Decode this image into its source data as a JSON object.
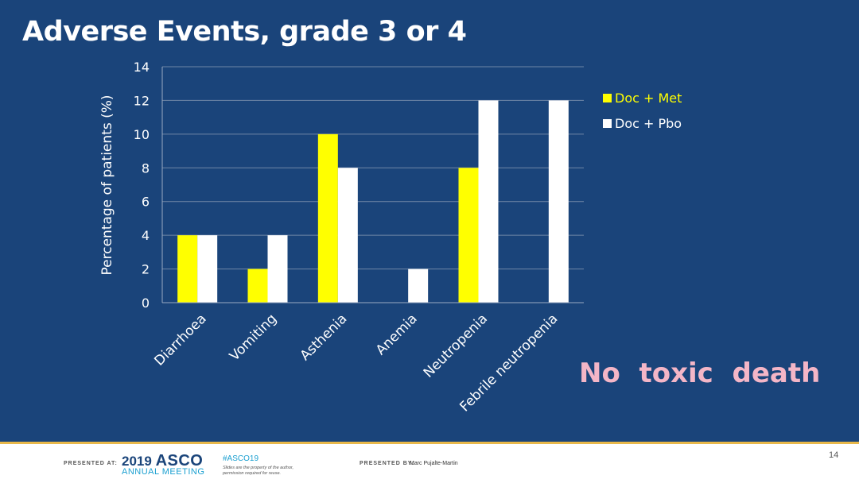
{
  "slide": {
    "title": "Adverse Events, grade 3 or 4",
    "note": "No  toxic  death",
    "page_number": "14"
  },
  "footer": {
    "presented_at_label": "PRESENTED AT:",
    "asco_year": "2019",
    "asco_brand": "ASCO",
    "asco_meeting": "ANNUAL MEETING",
    "hashtag": "#ASCO19",
    "rights_line1": "Slides are the property of the author,",
    "rights_line2": "permission required for reuse.",
    "presented_by_label": "PRESENTED BY:",
    "presenter": "Marc Pujalte-Martin"
  },
  "colors": {
    "background": "#1a447a",
    "series_doc_met": "#ffff00",
    "series_doc_pbo": "#ffffff",
    "note": "#f4b6c7"
  },
  "chart_data": {
    "type": "bar",
    "ylabel": "Percentage of patients (%)",
    "xlabel": "",
    "ylim": [
      0,
      14
    ],
    "yticks": [
      0,
      2,
      4,
      6,
      8,
      10,
      12,
      14
    ],
    "grid": true,
    "legend_position": "right",
    "categories": [
      "Diarrhoea",
      "Vomiting",
      "Asthenia",
      "Anemia",
      "Neutropenia",
      "Febrile neutropenia"
    ],
    "series": [
      {
        "name": "Doc + Met",
        "color": "#ffff00",
        "values": [
          4,
          2,
          10,
          0,
          8,
          0
        ]
      },
      {
        "name": "Doc + Pbo",
        "color": "#ffffff",
        "values": [
          4,
          4,
          8,
          2,
          12,
          12
        ]
      }
    ]
  }
}
